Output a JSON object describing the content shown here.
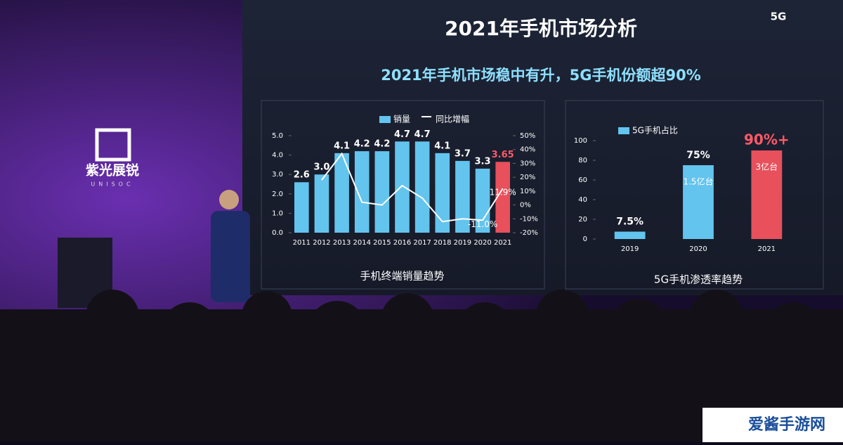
{
  "slide": {
    "title": "2021年手机市场分析",
    "subtitle": "2021年手机市场稳中有升，5G手机份额超90%",
    "brand": "紫光展锐",
    "brand_en": "UNISOC",
    "corner": "5G",
    "watermark": "爱酱手游网"
  },
  "chart_data": [
    {
      "type": "bar",
      "title": "手机终端销量趋势",
      "categories": [
        "2011",
        "2012",
        "2013",
        "2014",
        "2015",
        "2016",
        "2017",
        "2018",
        "2019",
        "2020",
        "2021"
      ],
      "series": [
        {
          "name": "销量",
          "color": "#63c4ee",
          "colors": [
            "#63c4ee",
            "#63c4ee",
            "#63c4ee",
            "#63c4ee",
            "#63c4ee",
            "#63c4ee",
            "#63c4ee",
            "#63c4ee",
            "#63c4ee",
            "#63c4ee",
            "#e8505b"
          ],
          "values": [
            2.6,
            3.0,
            4.1,
            4.2,
            4.2,
            4.7,
            4.7,
            4.1,
            3.7,
            3.3,
            3.65
          ],
          "value_labels": [
            "2.6",
            "3.0",
            "4.1",
            "4.2",
            "4.2",
            "4.7",
            "4.7",
            "4.1",
            "3.7",
            "3.3",
            "3.65"
          ]
        },
        {
          "name": "同比增幅",
          "type": "line",
          "axis": "y2",
          "color": "#ffffff",
          "values": [
            null,
            18,
            37,
            2,
            0,
            14,
            5,
            -12,
            -10,
            -11.0,
            11.9
          ],
          "value_labels": [
            null,
            null,
            null,
            null,
            null,
            null,
            null,
            null,
            null,
            "-11.0%",
            "11.9%"
          ]
        }
      ],
      "ylim": [
        0,
        5
      ],
      "yticks": [
        {
          "value": 0,
          "label": "0.0"
        },
        {
          "value": 1,
          "label": "1.0"
        },
        {
          "value": 2,
          "label": "2.0"
        },
        {
          "value": 3,
          "label": "3.0"
        },
        {
          "value": 4,
          "label": "4.0"
        },
        {
          "value": 5,
          "label": "5.0"
        }
      ],
      "y2lim": [
        -20,
        50
      ],
      "y2ticks": [
        {
          "value": -20,
          "label": "-20%"
        },
        {
          "value": -10,
          "label": "-10%"
        },
        {
          "value": 0,
          "label": "0%"
        },
        {
          "value": 10,
          "label": "10%"
        },
        {
          "value": 20,
          "label": "20%"
        },
        {
          "value": 30,
          "label": "30%"
        },
        {
          "value": 40,
          "label": "40%"
        },
        {
          "value": 50,
          "label": "50%"
        }
      ]
    },
    {
      "type": "bar",
      "title": "5G手机渗透率趋势",
      "categories": [
        "2019",
        "2020",
        "2021"
      ],
      "series": [
        {
          "name": "5G手机占比",
          "color": "#63c4ee",
          "colors": [
            "#63c4ee",
            "#63c4ee",
            "#e8505b"
          ],
          "values": [
            7.5,
            75,
            90
          ],
          "value_labels": [
            "7.5%",
            "75%",
            "90%+"
          ],
          "inner_labels": [
            null,
            "1.5亿台",
            "3亿台"
          ]
        }
      ],
      "ylim": [
        0,
        100
      ],
      "yticks": [
        0,
        20,
        40,
        60,
        80,
        100
      ]
    }
  ]
}
